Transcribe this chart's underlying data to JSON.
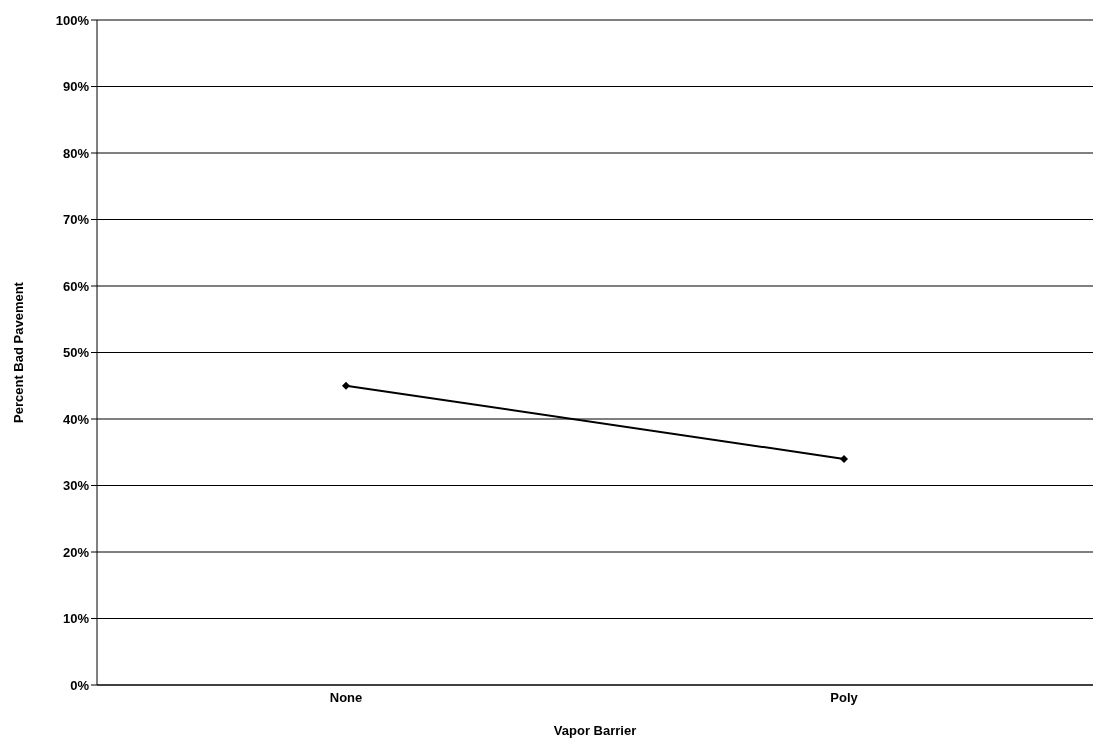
{
  "chart_data": {
    "type": "line",
    "xlabel": "Vapor Barrier",
    "ylabel": "Percent Bad Pavement",
    "categories": [
      "None",
      "Poly"
    ],
    "series": [
      {
        "color": "#000000",
        "values": [
          45,
          34
        ]
      }
    ],
    "ylim": [
      0,
      100
    ],
    "yticks": [
      {
        "value": 0,
        "label": "0%"
      },
      {
        "value": 10,
        "label": "10%"
      },
      {
        "value": 20,
        "label": "20%"
      },
      {
        "value": 30,
        "label": "30%"
      },
      {
        "value": 40,
        "label": "40%"
      },
      {
        "value": 50,
        "label": "50%"
      },
      {
        "value": 60,
        "label": "60%"
      },
      {
        "value": 70,
        "label": "70%"
      },
      {
        "value": 80,
        "label": "80%"
      },
      {
        "value": 90,
        "label": "90%"
      },
      {
        "value": 100,
        "label": "100%"
      }
    ],
    "grid": "y",
    "legend": false,
    "marker": "diamond",
    "line_style": "solid"
  }
}
